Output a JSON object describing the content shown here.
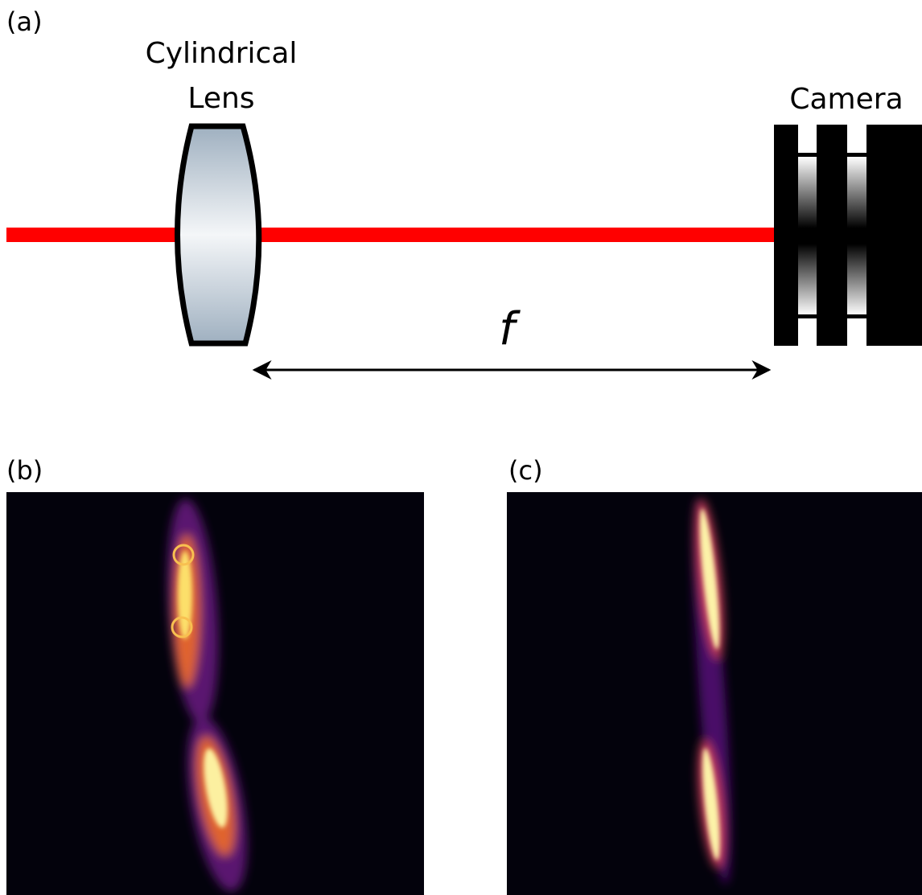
{
  "panel_labels": [
    "(a)",
    "(b)",
    "(c)"
  ],
  "lens_label": [
    "Cylindrical",
    "Lens"
  ],
  "camera_label": "Camera",
  "distance_label": "f"
}
